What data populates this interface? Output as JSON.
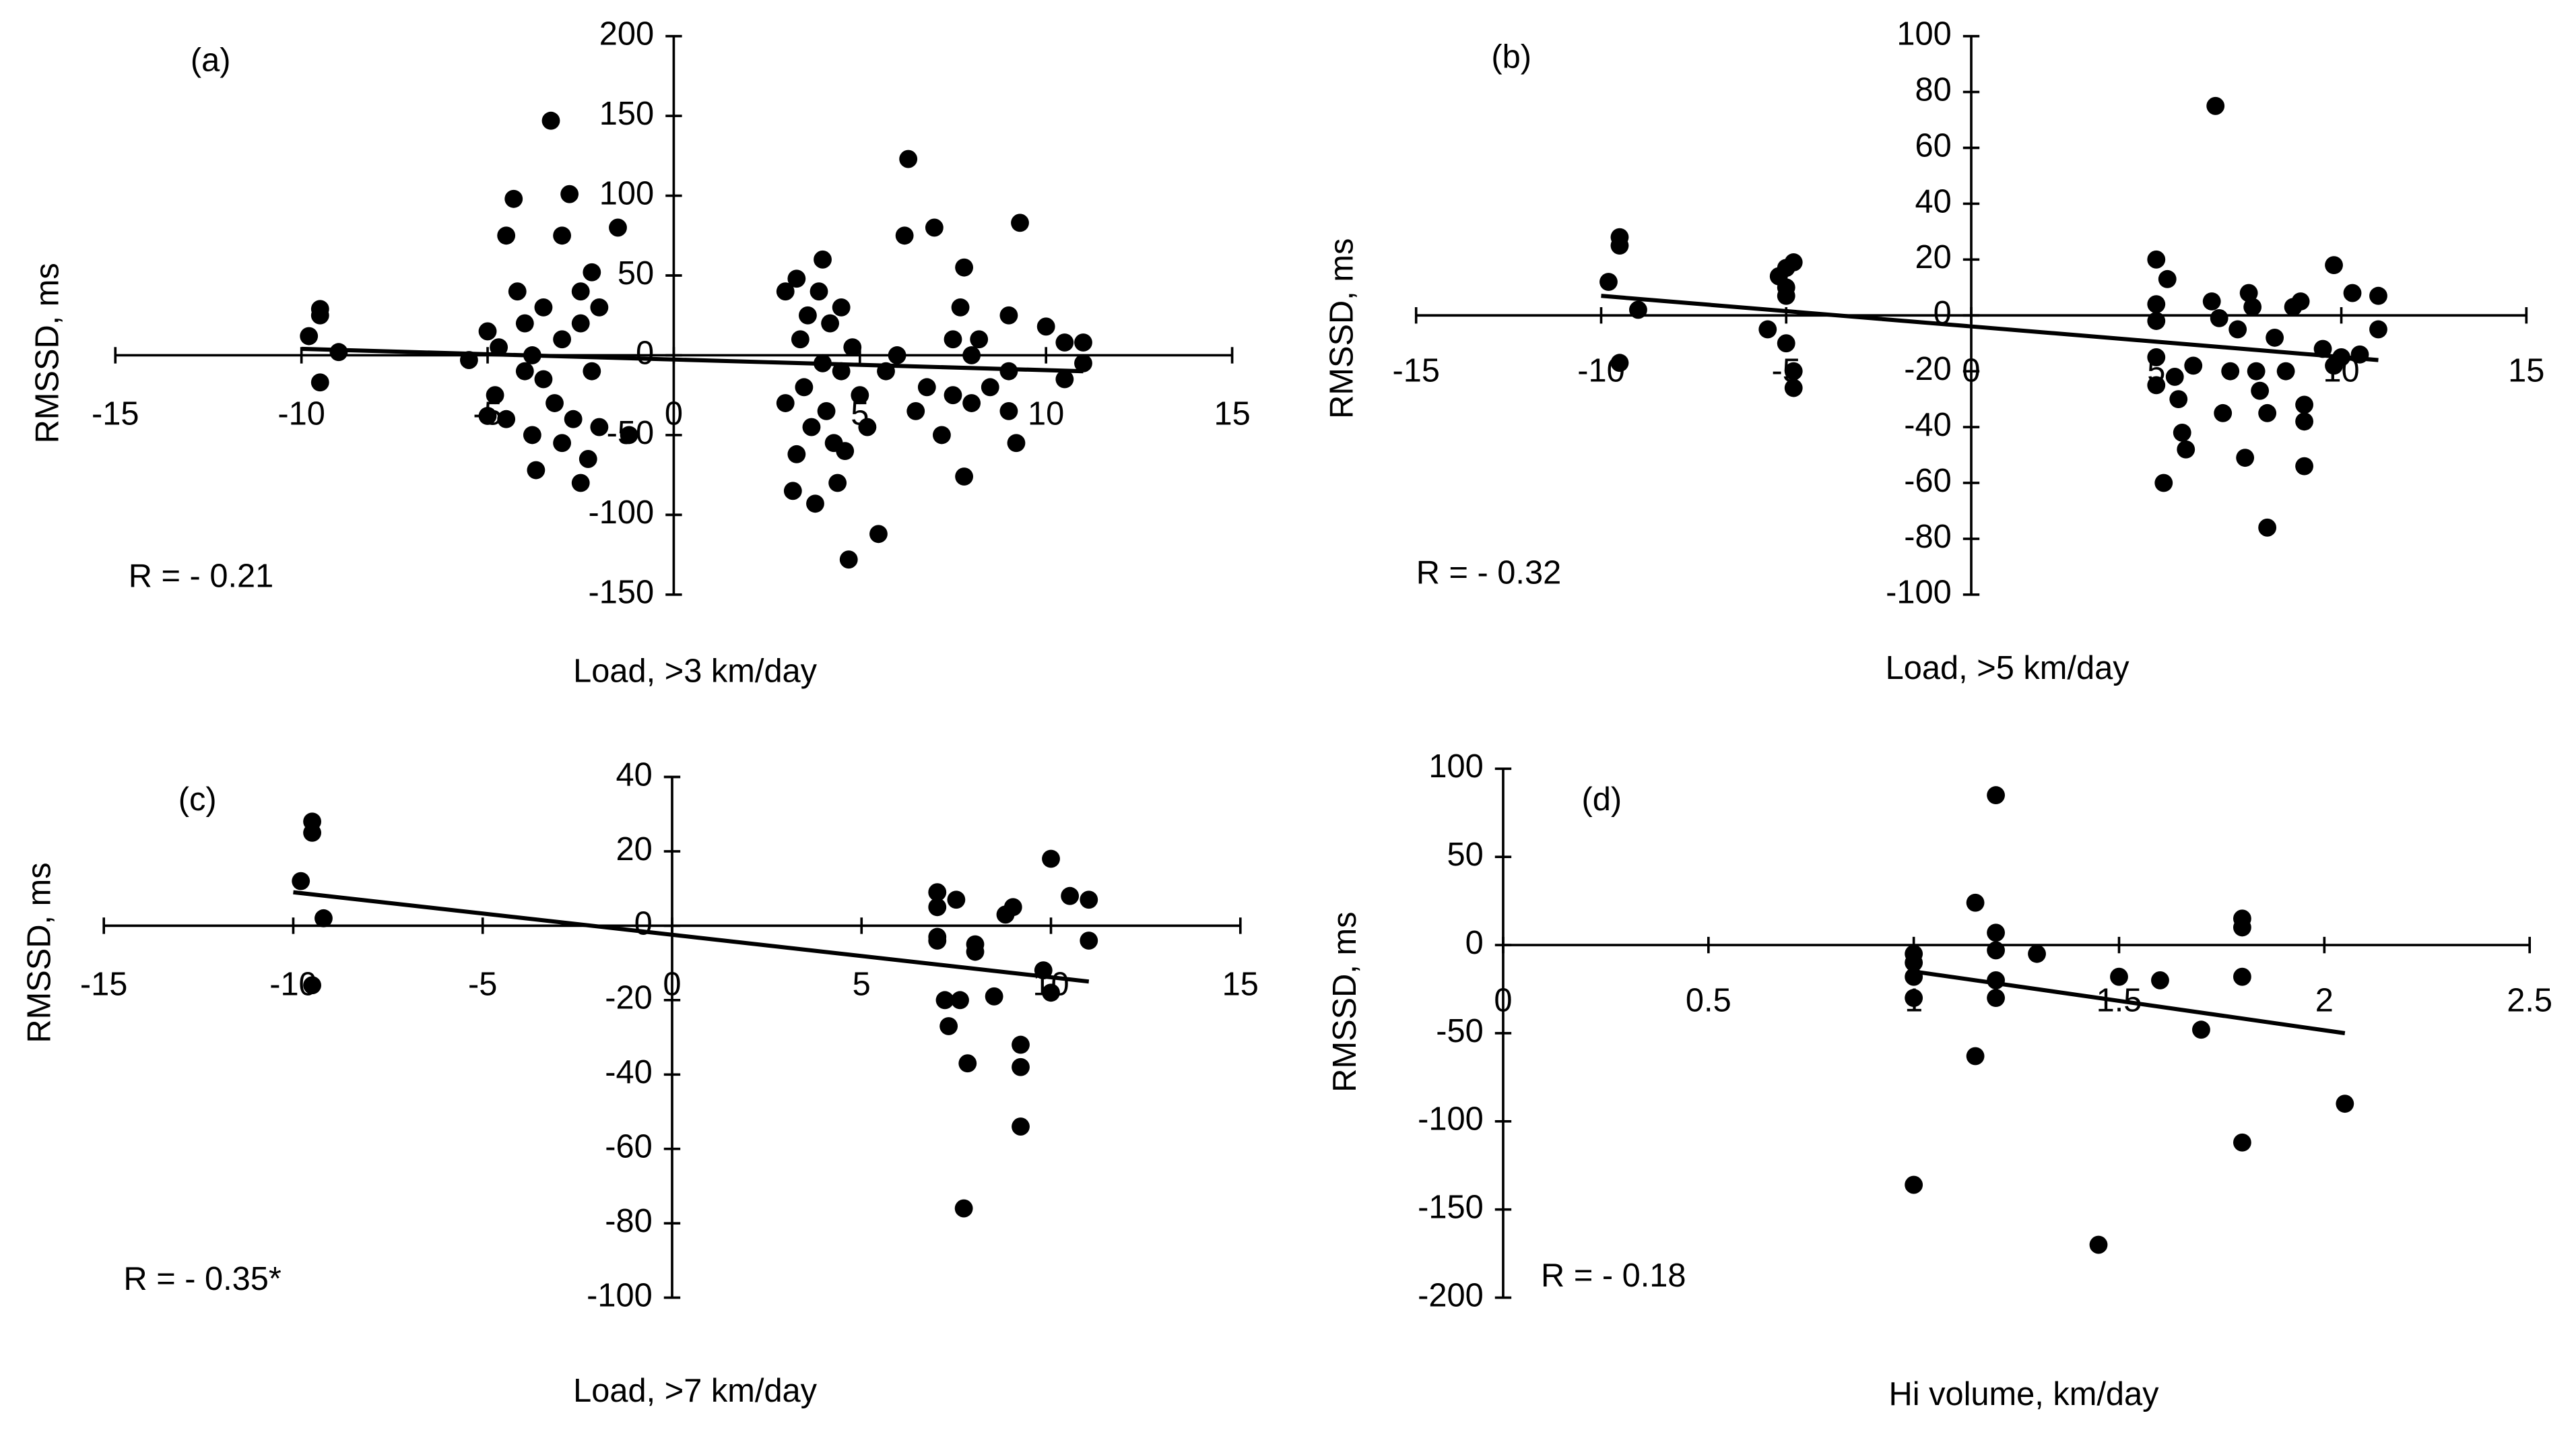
{
  "chart_data": [
    {
      "type": "scatter",
      "label": "(a)",
      "annotation": "R = - 0.21",
      "x_label": "Load, >3 km/day",
      "y_label": "RMSSD, ms",
      "color": "#000000",
      "xlim": [
        -15,
        15
      ],
      "ylim": [
        -150,
        200
      ],
      "xticks": [
        -15,
        -10,
        -5,
        0,
        5,
        10,
        15
      ],
      "yticks": [
        -150,
        -100,
        -50,
        0,
        50,
        100,
        150,
        200
      ],
      "x": [
        -9.8,
        -9.5,
        -9.5,
        -9.5,
        -9,
        -5.5,
        -5,
        -5,
        -4.8,
        -4.7,
        -4.5,
        -4.5,
        -4.3,
        -4.2,
        -4,
        -4,
        -3.8,
        -3.8,
        -3.7,
        -3.5,
        -3.5,
        -3.3,
        -3.2,
        -3,
        -3,
        -3,
        -2.8,
        -2.7,
        -2.5,
        -2.5,
        -2.5,
        -2.3,
        -2.2,
        -2.2,
        -2,
        -2,
        -1.5,
        -1.2,
        3,
        3,
        3.2,
        3.3,
        3.3,
        3.4,
        3.5,
        3.6,
        3.7,
        3.8,
        3.9,
        4,
        4,
        4.1,
        4.2,
        4.3,
        4.4,
        4.5,
        4.5,
        4.6,
        4.8,
        5,
        5.2,
        5.5,
        4.7,
        5.7,
        6,
        6.2,
        6.3,
        6.5,
        7,
        7.2,
        7.5,
        7.7,
        7.8,
        7.8,
        8,
        8.2,
        8.5,
        9,
        9,
        9.2,
        9.3,
        9,
        10,
        10.5,
        10.5,
        11,
        11,
        6.8,
        7.5,
        8
      ],
      "y": [
        12,
        25,
        29,
        -17,
        2,
        -3,
        15,
        -38,
        -25,
        5,
        75,
        -40,
        98,
        40,
        -10,
        20,
        -50,
        0,
        -72,
        30,
        -15,
        147,
        -30,
        10,
        -55,
        75,
        101,
        -40,
        40,
        -80,
        20,
        -65,
        52,
        -10,
        30,
        -45,
        80,
        -50,
        40,
        -30,
        -85,
        48,
        -62,
        10,
        -20,
        25,
        -45,
        -93,
        40,
        -5,
        60,
        -35,
        20,
        -55,
        -80,
        30,
        -10,
        -60,
        5,
        -25,
        -45,
        -112,
        -128,
        -10,
        0,
        75,
        123,
        -35,
        80,
        -50,
        -25,
        30,
        55,
        -76,
        0,
        10,
        -20,
        25,
        -35,
        -55,
        83,
        -10,
        18,
        -15,
        8,
        8,
        -5,
        -20,
        10,
        -30
      ],
      "trendline": {
        "x": [
          -10,
          11
        ],
        "y": [
          4,
          -10
        ]
      }
    },
    {
      "type": "scatter",
      "label": "(b)",
      "annotation": "R = - 0.32",
      "x_label": "Load, >5 km/day",
      "y_label": "RMSSD, ms",
      "color": "#000000",
      "xlim": [
        -15,
        15
      ],
      "ylim": [
        -100,
        100
      ],
      "xticks": [
        -15,
        -10,
        -5,
        0,
        5,
        10,
        15
      ],
      "yticks": [
        -100,
        -80,
        -60,
        -40,
        -20,
        0,
        20,
        40,
        60,
        80,
        100
      ],
      "x": [
        -9.8,
        -9.5,
        -9.5,
        -9.5,
        -9,
        -5.5,
        -5.2,
        -5,
        -5,
        -5,
        -5,
        -4.8,
        -4.8,
        -4.8,
        5,
        5,
        5,
        5,
        5,
        5.2,
        5.3,
        5.5,
        5.6,
        5.7,
        5.8,
        6,
        6.5,
        6.6,
        6.7,
        6.8,
        7,
        7.2,
        7.4,
        7.5,
        7.6,
        7.7,
        7.8,
        8,
        8,
        8.2,
        8.5,
        8.7,
        8.9,
        9,
        9,
        9,
        9.5,
        9.8,
        9.8,
        10,
        10.3,
        10.5,
        11,
        11
      ],
      "y": [
        12,
        28,
        25,
        -17,
        2,
        -5,
        14,
        17,
        10,
        7,
        -10,
        -20,
        -26,
        19,
        20,
        4,
        -2,
        -15,
        -25,
        -60,
        13,
        -22,
        -30,
        -42,
        -48,
        -18,
        5,
        75,
        -1,
        -35,
        -20,
        -5,
        -51,
        8,
        3,
        -20,
        -27,
        -76,
        -35,
        -8,
        -20,
        3,
        5,
        -32,
        -38,
        -54,
        -12,
        18,
        -18,
        -15,
        8,
        -14,
        7,
        -5
      ],
      "trendline": {
        "x": [
          -10,
          11
        ],
        "y": [
          7,
          -16
        ]
      }
    },
    {
      "type": "scatter",
      "label": "(c)",
      "annotation": "R =  - 0.35*",
      "x_label": "Load,  >7 km/day",
      "y_label": "RMSSD, ms",
      "color": "#000000",
      "xlim": [
        -15,
        15
      ],
      "ylim": [
        -100,
        40
      ],
      "xticks": [
        -15,
        -10,
        -5,
        0,
        5,
        10,
        15
      ],
      "yticks": [
        -100,
        -80,
        -60,
        -40,
        -20,
        0,
        20,
        40
      ],
      "x": [
        -9.8,
        -9.5,
        -9.5,
        -9.5,
        -9.2,
        7,
        7,
        7,
        7,
        7.2,
        7.3,
        7.5,
        7.6,
        7.7,
        7.8,
        8,
        8,
        8.5,
        8.8,
        9,
        9.2,
        9.2,
        9.2,
        9.8,
        10,
        10,
        10.5,
        11,
        11
      ],
      "y": [
        12,
        28,
        25,
        -16,
        2,
        9,
        5,
        -3,
        -4,
        -20,
        -27,
        7,
        -20,
        -76,
        -37,
        -5,
        -7,
        -19,
        3,
        5,
        -32,
        -38,
        -54,
        -12,
        -18,
        18,
        8,
        7,
        -4
      ],
      "trendline": {
        "x": [
          -10,
          11
        ],
        "y": [
          9,
          -15
        ]
      }
    },
    {
      "type": "scatter",
      "label": "(d)",
      "annotation": "R = - 0.18",
      "x_label": "Hi volume, km/day",
      "y_label": "RMSSD, ms",
      "color": "#000000",
      "xlim": [
        0,
        2.5
      ],
      "ylim": [
        -200,
        100
      ],
      "xticks": [
        0,
        0.5,
        1,
        1.5,
        2,
        2.5
      ],
      "yticks": [
        -200,
        -150,
        -100,
        -50,
        0,
        50,
        100
      ],
      "x": [
        1,
        1,
        1,
        1,
        1,
        1.15,
        1.15,
        1.2,
        1.2,
        1.2,
        1.2,
        1.2,
        1.3,
        1.45,
        1.5,
        1.6,
        1.7,
        1.8,
        1.8,
        1.8,
        1.8,
        2.05
      ],
      "y": [
        -30,
        -18,
        -10,
        -5,
        -136,
        24,
        -63,
        85,
        7,
        -3,
        -20,
        -30,
        -5,
        -170,
        -18,
        -20,
        -48,
        15,
        10,
        -18,
        -112,
        -90
      ],
      "trendline": {
        "x": [
          1,
          2.05
        ],
        "y": [
          -15,
          -50
        ]
      }
    }
  ]
}
